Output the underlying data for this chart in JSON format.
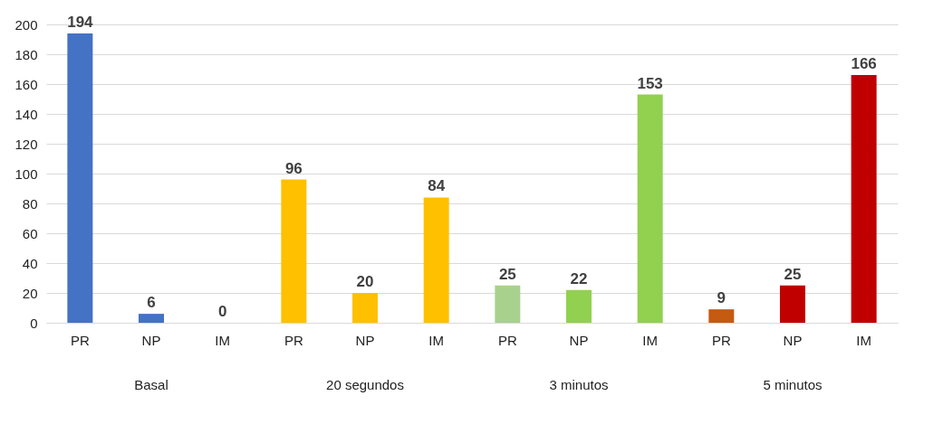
{
  "chart_data": {
    "type": "bar",
    "categories": [
      "PR",
      "NP",
      "IM",
      "PR",
      "NP",
      "IM",
      "PR",
      "NP",
      "IM",
      "PR",
      "NP",
      "IM"
    ],
    "values": [
      194,
      6,
      0,
      96,
      20,
      84,
      25,
      22,
      153,
      9,
      25,
      166
    ],
    "colors": [
      "#4472c4",
      "#4472c4",
      "#4472c4",
      "#ffc000",
      "#ffc000",
      "#ffc000",
      "#a9d18e",
      "#92d050",
      "#92d050",
      "#c55a11",
      "#c00000",
      "#c00000"
    ],
    "ylim": [
      0,
      200
    ],
    "yticks": [
      0,
      20,
      40,
      60,
      80,
      100,
      120,
      140,
      160,
      180,
      200
    ],
    "grid": "y",
    "data_labels": true,
    "annotations": [
      "Basal",
      "20 segundos",
      "3 minutos",
      "5 minutos"
    ]
  }
}
